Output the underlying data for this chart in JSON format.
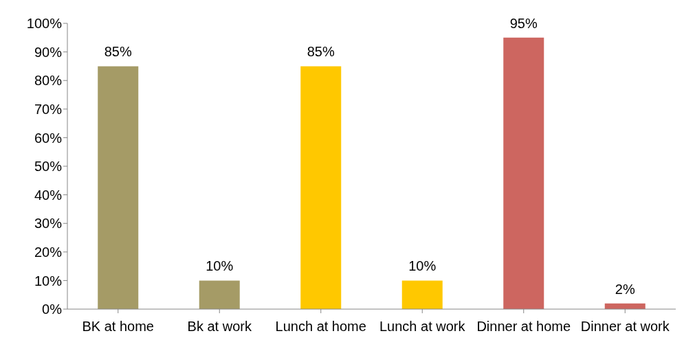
{
  "chart_data": {
    "type": "bar",
    "categories": [
      "BK at home",
      "Bk at work",
      "Lunch at home",
      "Lunch at work",
      "Dinner at home",
      "Dinner at work"
    ],
    "values": [
      85,
      10,
      85,
      10,
      95,
      2
    ],
    "colors": [
      "#a59b66",
      "#a59b66",
      "#ffc800",
      "#ffc800",
      "#cd6660",
      "#cd6660"
    ],
    "value_labels": [
      "85%",
      "10%",
      "85%",
      "10%",
      "95%",
      "2%"
    ],
    "ylim": [
      0,
      100
    ],
    "yticks": [
      {
        "value": 0,
        "label": "0%"
      },
      {
        "value": 10,
        "label": "10%"
      },
      {
        "value": 20,
        "label": "20%"
      },
      {
        "value": 30,
        "label": "30%"
      },
      {
        "value": 40,
        "label": "40%"
      },
      {
        "value": 50,
        "label": "50%"
      },
      {
        "value": 60,
        "label": "60%"
      },
      {
        "value": 70,
        "label": "70%"
      },
      {
        "value": 80,
        "label": "80%"
      },
      {
        "value": 90,
        "label": "90%"
      },
      {
        "value": 100,
        "label": "100%"
      }
    ],
    "grid": false,
    "legend": false
  }
}
